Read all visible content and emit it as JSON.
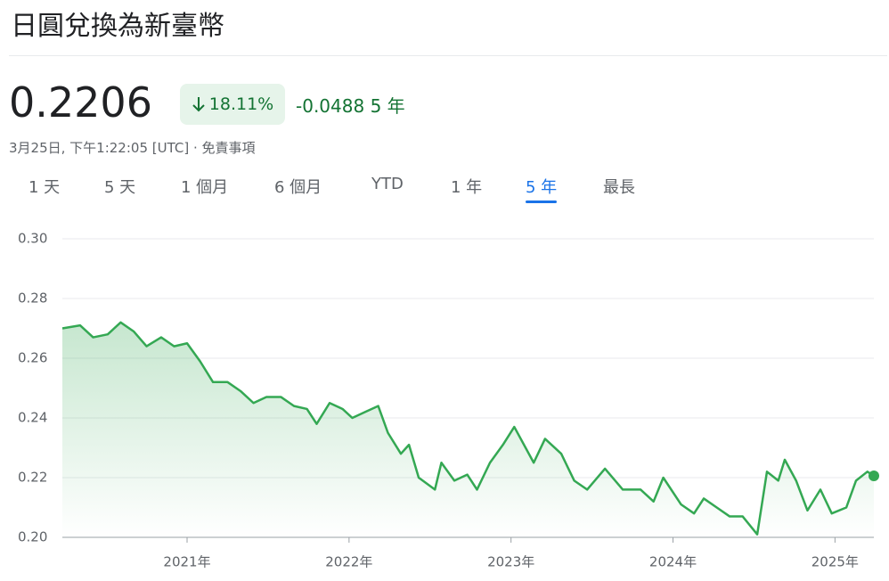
{
  "header": {
    "title": "日圓兌換為新臺幣",
    "price": "0.2206",
    "change_percent": "18.11%",
    "change_value": "-0.0488",
    "change_period": "5 年",
    "timestamp": "3月25日, 下午1:22:05 [UTC] · 免責事項"
  },
  "tabs": {
    "items": [
      "1 天",
      "5 天",
      "1 個月",
      "6 個月",
      "YTD",
      "1 年",
      "5 年",
      "最長"
    ],
    "selected": 6
  },
  "chart_data": {
    "type": "line",
    "color": "#34a853",
    "grid": true,
    "x": [
      2020.23,
      2020.34,
      2020.42,
      2020.51,
      2020.59,
      2020.67,
      2020.75,
      2020.84,
      2020.92,
      2021.0,
      2021.08,
      2021.16,
      2021.25,
      2021.33,
      2021.41,
      2021.49,
      2021.58,
      2021.66,
      2021.74,
      2021.8,
      2021.88,
      2021.96,
      2022.02,
      2022.1,
      2022.18,
      2022.24,
      2022.32,
      2022.37,
      2022.43,
      2022.53,
      2022.57,
      2022.65,
      2022.73,
      2022.79,
      2022.87,
      2022.95,
      2023.02,
      2023.09,
      2023.14,
      2023.21,
      2023.31,
      2023.39,
      2023.47,
      2023.58,
      2023.69,
      2023.8,
      2023.88,
      2023.94,
      2024.05,
      2024.13,
      2024.19,
      2024.27,
      2024.35,
      2024.43,
      2024.52,
      2024.58,
      2024.65,
      2024.69,
      2024.76,
      2024.83,
      2024.91,
      2024.98,
      2025.07,
      2025.13,
      2025.2,
      2025.24
    ],
    "values": [
      0.27,
      0.271,
      0.267,
      0.268,
      0.272,
      0.269,
      0.264,
      0.267,
      0.264,
      0.265,
      0.259,
      0.252,
      0.252,
      0.249,
      0.245,
      0.247,
      0.247,
      0.244,
      0.243,
      0.238,
      0.245,
      0.243,
      0.24,
      0.242,
      0.244,
      0.235,
      0.228,
      0.231,
      0.22,
      0.216,
      0.225,
      0.219,
      0.221,
      0.216,
      0.225,
      0.231,
      0.237,
      0.23,
      0.225,
      0.233,
      0.228,
      0.219,
      0.216,
      0.223,
      0.216,
      0.216,
      0.212,
      0.22,
      0.211,
      0.208,
      0.213,
      0.21,
      0.207,
      0.207,
      0.201,
      0.222,
      0.219,
      0.226,
      0.219,
      0.209,
      0.216,
      0.208,
      0.21,
      0.219,
      0.222,
      0.2206
    ],
    "xlim": [
      2020.23,
      2025.24
    ],
    "xticks": [
      {
        "value": 2021,
        "label": "2021年"
      },
      {
        "value": 2022,
        "label": "2022年"
      },
      {
        "value": 2023,
        "label": "2023年"
      },
      {
        "value": 2024,
        "label": "2024年"
      },
      {
        "value": 2025,
        "label": "2025年"
      }
    ],
    "ylim": [
      0.2,
      0.3
    ],
    "yticks": [
      {
        "value": 0.2,
        "label": "0.20"
      },
      0.22,
      0.24,
      0.26,
      0.28,
      {
        "value": 0.3,
        "label": "0.30"
      }
    ]
  }
}
